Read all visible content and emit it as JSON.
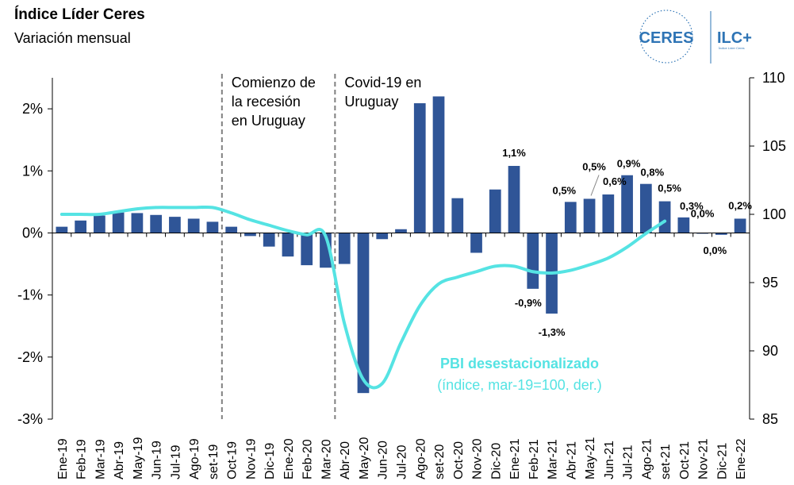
{
  "header": {
    "title": "Índice Líder Ceres",
    "subtitle": "Variación mensual"
  },
  "logo": {
    "left_text": "CERES",
    "right_text": "ILC+",
    "small_text": "Índice Líder Ceres"
  },
  "colors": {
    "bar": "#2f5597",
    "line": "#55e3e3",
    "axis": "#000000",
    "vline": "#808080",
    "logo": "#2e74b5"
  },
  "chart_data": {
    "type": "bar",
    "categories": [
      "Ene-19",
      "Feb-19",
      "Mar-19",
      "Abr-19",
      "May-19",
      "Jun-19",
      "Jul-19",
      "Ago-19",
      "set-19",
      "Oct-19",
      "Nov-19",
      "Dic-19",
      "Ene-20",
      "Feb-20",
      "Mar-20",
      "Abr-20",
      "May-20",
      "Jun-20",
      "Jul-20",
      "Ago-20",
      "set-20",
      "Oct-20",
      "Nov-20",
      "Dic-20",
      "Ene-21",
      "Feb-21",
      "Mar-21",
      "Abr-21",
      "May-21",
      "Jun-21",
      "Jul-21",
      "Ago-21",
      "set-21",
      "Oct-21",
      "Nov-21",
      "Dic-21",
      "Ene-22"
    ],
    "series": [
      {
        "axis": "left",
        "values": [
          0.1,
          0.2,
          0.28,
          0.33,
          0.32,
          0.29,
          0.26,
          0.23,
          0.18,
          0.1,
          -0.05,
          -0.22,
          -0.38,
          -0.52,
          -0.56,
          -0.5,
          -2.58,
          -0.1,
          0.06,
          2.09,
          2.2,
          0.56,
          -0.32,
          0.7,
          1.08,
          -0.9,
          -1.3,
          0.5,
          0.55,
          0.62,
          0.93,
          0.79,
          0.51,
          0.25,
          0.0,
          -0.03,
          0.23
        ]
      },
      {
        "name": "PBI desestacionalizado",
        "name_note": "(índice, mar-19=100, der.)",
        "type": "line",
        "axis": "right",
        "values": [
          100.0,
          100.0,
          100.0,
          100.2,
          100.4,
          100.5,
          100.5,
          100.5,
          100.5,
          100.1,
          99.6,
          99.2,
          98.8,
          98.5,
          98.4,
          92.0,
          87.9,
          87.6,
          90.6,
          93.3,
          94.9,
          95.4,
          95.8,
          96.2,
          96.2,
          95.8,
          95.7,
          95.9,
          96.3,
          96.8,
          97.6,
          98.6,
          99.5,
          null,
          null,
          null,
          null
        ]
      }
    ],
    "data_labels": [
      {
        "category": "Ene-21",
        "text": "1,1%"
      },
      {
        "category": "Feb-21",
        "text": "-0,9%"
      },
      {
        "category": "Mar-21",
        "text": "-1,3%"
      },
      {
        "category": "Abr-21",
        "text": "0,5%"
      },
      {
        "category": "May-21",
        "text": "0,5%"
      },
      {
        "category": "Jun-21",
        "text": "0,6%"
      },
      {
        "category": "Jul-21",
        "text": "0,9%"
      },
      {
        "category": "Ago-21",
        "text": "0,8%"
      },
      {
        "category": "set-21",
        "text": "0,5%"
      },
      {
        "category": "Oct-21",
        "text": "0,3%"
      },
      {
        "category": "Nov-21",
        "text": "0,0%"
      },
      {
        "category": "Dic-21",
        "text": "0,0%"
      },
      {
        "category": "Ene-22",
        "text": "0,2%"
      }
    ],
    "annotations": [
      {
        "after": "set-19",
        "lines": [
          "Comienzo de",
          "la recesión",
          "en Uruguay"
        ]
      },
      {
        "after": "Mar-20",
        "lines": [
          "Covid-19 en",
          "Uruguay"
        ]
      }
    ],
    "y_left": {
      "min": -3,
      "max": 2.5,
      "ticks": [
        -3,
        -2,
        -1,
        0,
        1,
        2
      ],
      "tick_labels": [
        "-3%",
        "-2%",
        "-1%",
        "0%",
        "1%",
        "2%"
      ]
    },
    "y_right": {
      "min": 85,
      "max": 110,
      "ticks": [
        85,
        90,
        95,
        100,
        105,
        110
      ],
      "tick_labels": [
        "85",
        "90",
        "95",
        "100",
        "105",
        "110"
      ]
    },
    "grid": false,
    "legend": "none"
  }
}
